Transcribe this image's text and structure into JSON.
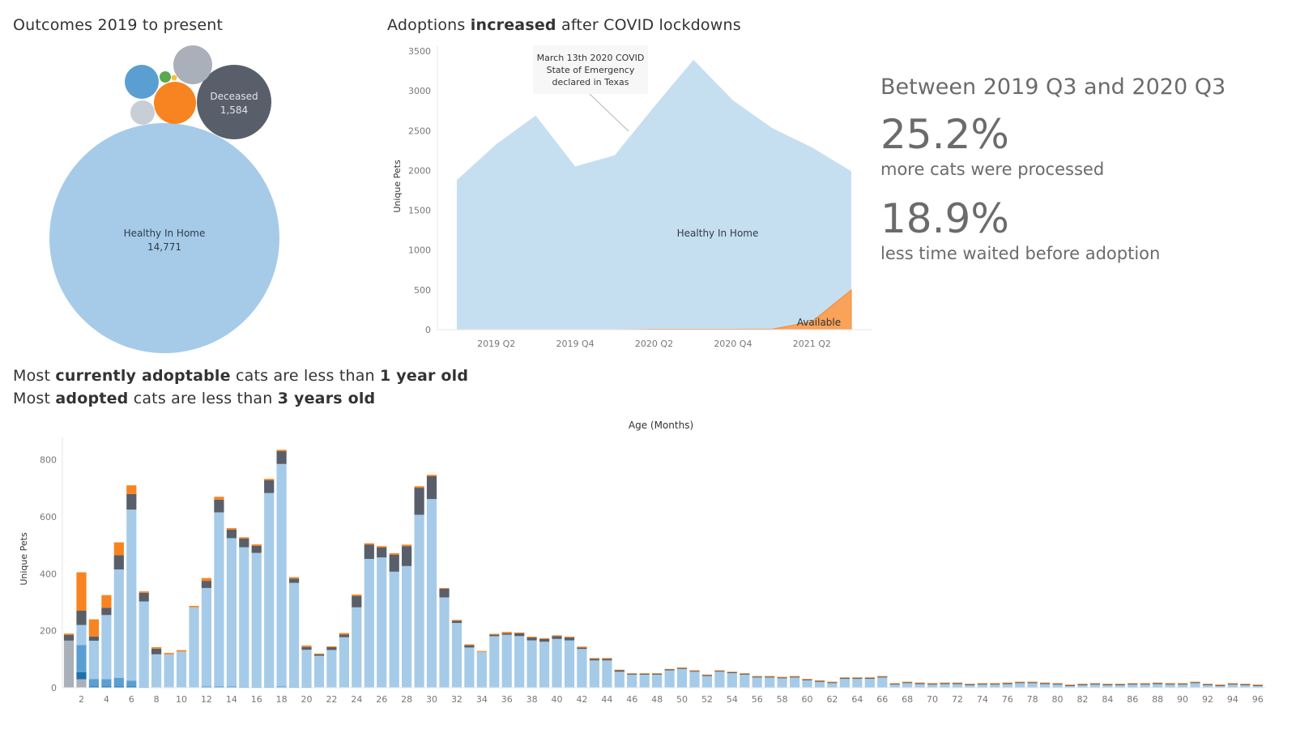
{
  "bubble": {
    "title": "Outcomes 2019 to present",
    "labels": [
      {
        "name": "Healthy In Home",
        "value": "14,771"
      },
      {
        "name": "Deceased",
        "value": "1,584"
      }
    ],
    "colors": {
      "healthy": "#a6cbe8",
      "deceased": "#585f6b",
      "orange": "#f78420",
      "grey": "#a9b0ba",
      "blue": "#5b9fd2",
      "lightgrey": "#c8ced6",
      "green": "#5ba84f",
      "yellow": "#f2c236"
    }
  },
  "area": {
    "title_pre": "Adoptions ",
    "title_bold": "increased",
    "title_post": " after COVID lockdowns",
    "ylabel": "Unique Pets",
    "annotation": [
      "March 13th 2020 COVID",
      "State of Emergency",
      "declared in Texas"
    ],
    "label_main": "Healthy In Home",
    "label_avail": "Available"
  },
  "kpi": {
    "heading": "Between 2019 Q3 and 2020 Q3",
    "value1": "25.2%",
    "text1": "more cats were processed",
    "value2": "18.9%",
    "text2": "less time waited before adoption"
  },
  "bar": {
    "line1_pre": "Most ",
    "line1_bold": "currently adoptable",
    "line1_mid": " cats are less than ",
    "line1_bold2": "1 year old",
    "line2_pre": "Most ",
    "line2_bold": "adopted",
    "line2_mid": " cats are less than ",
    "line2_bold2": "3 years old",
    "xlabel": "Age (Months)",
    "ylabel": "Unique Pets"
  },
  "chart_data": [
    {
      "type": "bubble",
      "title": "Outcomes 2019 to present",
      "items": [
        {
          "name": "Healthy In Home",
          "value": 14771,
          "color": "#a6cbe8"
        },
        {
          "name": "Deceased",
          "value": 1584,
          "color": "#585f6b"
        },
        {
          "name": "",
          "value": 840,
          "color": "#f78420"
        },
        {
          "name": "",
          "value": 700,
          "color": "#a9b0ba"
        },
        {
          "name": "",
          "value": 560,
          "color": "#5b9fd2"
        },
        {
          "name": "",
          "value": 300,
          "color": "#c8ced6"
        },
        {
          "name": "",
          "value": 70,
          "color": "#5ba84f"
        },
        {
          "name": "",
          "value": 15,
          "color": "#f2c236"
        }
      ]
    },
    {
      "type": "area",
      "title": "Adoptions increased after COVID lockdowns",
      "xlabel": "",
      "ylabel": "Unique Pets",
      "ylim": [
        0,
        3500
      ],
      "yticks": [
        0,
        500,
        1000,
        1500,
        2000,
        2500,
        3000,
        3500
      ],
      "xticks": [
        "2019 Q2",
        "2019 Q4",
        "2020 Q2",
        "2020 Q4",
        "2021 Q2"
      ],
      "x": [
        "2019 Q1",
        "2019 Q2",
        "2019 Q3",
        "2019 Q4",
        "2020 Q1",
        "2020 Q2",
        "2020 Q3",
        "2020 Q4",
        "2021 Q1",
        "2021 Q2",
        "2021 Q3"
      ],
      "series": [
        {
          "name": "Healthy In Home",
          "color": "#c6dff0",
          "values": [
            1880,
            2330,
            2690,
            2050,
            2190,
            2800,
            3390,
            2880,
            2530,
            2290,
            1990
          ]
        },
        {
          "name": "Available",
          "color": "#f9a25a",
          "values": [
            0,
            0,
            0,
            0,
            0,
            5,
            5,
            5,
            8,
            100,
            500
          ]
        }
      ],
      "annotations": [
        {
          "text": "March 13th 2020 COVID State of Emergency declared in Texas",
          "x": "2020 Q1"
        }
      ]
    },
    {
      "type": "bar",
      "stacked": true,
      "xlabel": "Age (Months)",
      "ylabel": "Unique Pets",
      "ylim": [
        0,
        850
      ],
      "yticks": [
        0,
        200,
        400,
        600,
        800
      ],
      "xticks": [
        2,
        4,
        6,
        8,
        10,
        12,
        14,
        16,
        18,
        20,
        22,
        24,
        26,
        28,
        30,
        32,
        34,
        36,
        38,
        40,
        42,
        44,
        46,
        48,
        50,
        52,
        54,
        56,
        58,
        60,
        62,
        64,
        66,
        68,
        70,
        72,
        74,
        76,
        78,
        80,
        82,
        84,
        86,
        88,
        90,
        92,
        94,
        96
      ],
      "categories": [
        1,
        2,
        3,
        4,
        5,
        6,
        7,
        8,
        9,
        10,
        11,
        12,
        13,
        14,
        15,
        16,
        17,
        18,
        19,
        20,
        21,
        22,
        23,
        24,
        25,
        26,
        27,
        28,
        29,
        30,
        31,
        32,
        33,
        34,
        35,
        36,
        37,
        38,
        39,
        40,
        41,
        42,
        43,
        44,
        45,
        46,
        47,
        48,
        49,
        50,
        51,
        52,
        53,
        54,
        55,
        56,
        57,
        58,
        59,
        60,
        61,
        62,
        63,
        64,
        65,
        66,
        67,
        68,
        69,
        70,
        71,
        72,
        73,
        74,
        75,
        76,
        77,
        78,
        79,
        80,
        81,
        82,
        83,
        84,
        85,
        86,
        87,
        88,
        89,
        90,
        91,
        92,
        93,
        94,
        95,
        96
      ],
      "series": [
        {
          "name": "",
          "color": "#a9b0ba",
          "values": [
            165,
            30,
            0,
            0,
            0,
            0,
            0,
            0,
            0,
            0,
            0,
            0,
            0,
            0,
            0,
            0,
            0,
            0,
            0,
            0,
            0,
            0,
            0,
            0,
            0,
            0,
            0,
            0,
            0,
            0,
            0,
            0,
            0,
            0,
            0,
            0,
            0,
            0,
            0,
            0,
            0,
            0,
            0,
            0,
            0,
            0,
            0,
            0,
            0,
            0,
            0,
            0,
            0,
            0,
            0,
            0,
            0,
            0,
            0,
            0,
            0,
            0,
            0,
            0,
            0,
            0,
            0,
            0,
            0,
            0,
            0,
            0,
            0,
            0,
            0,
            0,
            0,
            0,
            0,
            0,
            0,
            0,
            0,
            0,
            0,
            0,
            0,
            0,
            0,
            0,
            0,
            0,
            0,
            0,
            0,
            0
          ]
        },
        {
          "name": "",
          "color": "#1f6fad",
          "values": [
            0,
            25,
            5,
            5,
            5,
            5,
            0,
            0,
            0,
            0,
            0,
            0,
            0,
            0,
            0,
            0,
            0,
            0,
            0,
            0,
            0,
            0,
            0,
            0,
            0,
            0,
            0,
            0,
            0,
            0,
            0,
            0,
            0,
            0,
            0,
            0,
            0,
            0,
            0,
            0,
            0,
            0,
            0,
            0,
            0,
            0,
            0,
            0,
            0,
            0,
            0,
            0,
            0,
            0,
            0,
            0,
            0,
            0,
            0,
            0,
            0,
            0,
            0,
            0,
            0,
            0,
            0,
            0,
            0,
            0,
            0,
            0,
            0,
            0,
            0,
            0,
            0,
            0,
            0,
            0,
            0,
            0,
            0,
            0,
            0,
            0,
            0,
            0,
            0,
            0,
            0,
            0,
            0,
            0,
            0,
            0
          ]
        },
        {
          "name": "",
          "color": "#5b9fd2",
          "values": [
            0,
            95,
            25,
            25,
            30,
            20,
            3,
            2,
            2,
            2,
            2,
            5,
            5,
            5,
            3,
            3,
            3,
            5,
            3,
            3,
            2,
            2,
            2,
            2,
            2,
            2,
            2,
            2,
            2,
            2,
            2,
            2,
            1,
            1,
            1,
            1,
            1,
            1,
            1,
            1,
            1,
            1,
            1,
            1,
            1,
            1,
            1,
            1,
            1,
            1,
            1,
            1,
            1,
            1,
            1,
            1,
            1,
            1,
            1,
            1,
            1,
            1,
            1,
            1,
            1,
            1,
            1,
            1,
            1,
            1,
            1,
            1,
            1,
            1,
            1,
            1,
            1,
            1,
            1,
            1,
            1,
            1,
            1,
            1,
            1,
            1,
            1,
            1,
            1,
            1,
            1,
            1,
            1,
            1,
            1,
            1
          ]
        },
        {
          "name": "",
          "color": "#a6cbe8",
          "values": [
            0,
            70,
            135,
            225,
            380,
            600,
            300,
            115,
            115,
            125,
            280,
            345,
            610,
            520,
            490,
            470,
            680,
            780,
            365,
            130,
            110,
            130,
            175,
            280,
            450,
            455,
            405,
            425,
            605,
            660,
            315,
            225,
            140,
            125,
            180,
            185,
            180,
            165,
            160,
            170,
            165,
            135,
            95,
            95,
            55,
            45,
            45,
            45,
            60,
            65,
            55,
            40,
            55,
            50,
            45,
            35,
            35,
            32,
            35,
            25,
            20,
            15,
            30,
            30,
            30,
            35,
            10,
            15,
            12,
            10,
            12,
            12,
            8,
            10,
            10,
            12,
            15,
            15,
            12,
            10,
            5,
            8,
            10,
            8,
            8,
            10,
            10,
            12,
            10,
            10,
            15,
            8,
            5,
            10,
            8,
            5
          ]
        },
        {
          "name": "",
          "color": "#585f6b",
          "values": [
            20,
            50,
            15,
            25,
            50,
            55,
            30,
            20,
            0,
            0,
            0,
            25,
            45,
            30,
            30,
            25,
            45,
            45,
            15,
            10,
            5,
            10,
            10,
            40,
            50,
            35,
            60,
            70,
            95,
            80,
            30,
            8,
            8,
            0,
            5,
            5,
            10,
            10,
            10,
            10,
            10,
            5,
            5,
            5,
            5,
            3,
            3,
            3,
            3,
            3,
            3,
            3,
            3,
            3,
            3,
            3,
            3,
            3,
            3,
            3,
            3,
            3,
            3,
            3,
            3,
            3,
            3,
            3,
            3,
            3,
            3,
            3,
            3,
            3,
            3,
            3,
            3,
            3,
            3,
            3,
            3,
            3,
            3,
            3,
            3,
            3,
            3,
            3,
            3,
            3,
            3,
            3,
            3,
            3,
            3,
            3
          ]
        },
        {
          "name": "",
          "color": "#f78420",
          "values": [
            5,
            135,
            60,
            45,
            45,
            30,
            5,
            5,
            5,
            5,
            5,
            10,
            10,
            5,
            5,
            5,
            5,
            5,
            5,
            5,
            3,
            3,
            5,
            5,
            5,
            5,
            5,
            5,
            5,
            5,
            3,
            3,
            3,
            3,
            3,
            5,
            3,
            3,
            3,
            3,
            3,
            3,
            3,
            3,
            2,
            2,
            2,
            2,
            2,
            2,
            2,
            2,
            2,
            2,
            2,
            2,
            2,
            2,
            2,
            2,
            2,
            2,
            2,
            2,
            2,
            2,
            2,
            2,
            2,
            2,
            2,
            2,
            2,
            2,
            2,
            2,
            2,
            2,
            2,
            2,
            2,
            2,
            2,
            2,
            2,
            2,
            2,
            2,
            2,
            2,
            2,
            2,
            2,
            2,
            2,
            2
          ]
        }
      ]
    }
  ]
}
